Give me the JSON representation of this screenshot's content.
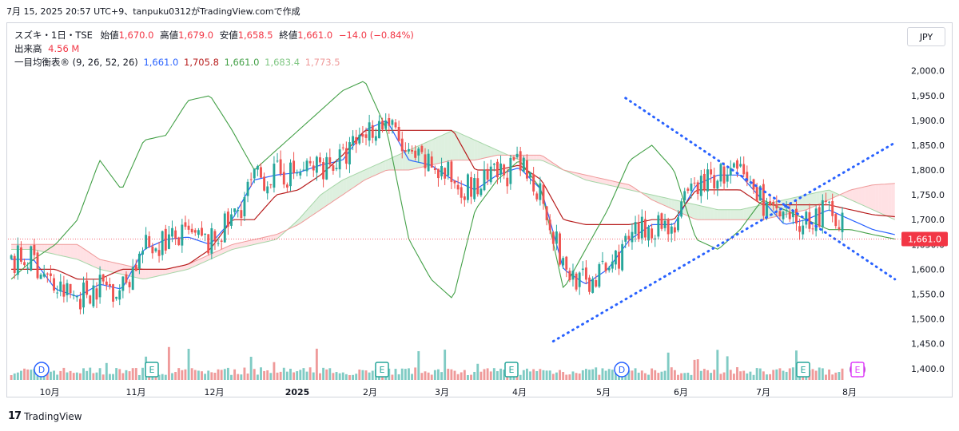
{
  "header": {
    "caption": "7月 15, 2025 20:57 UTC+9、tanpuku0312がTradingView.comで作成"
  },
  "legend": {
    "symbol": "スズキ・1日・TSE",
    "open_label": "始値",
    "open": "1,670.0",
    "high_label": "高値",
    "high": "1,679.0",
    "low_label": "安値",
    "low": "1,658.5",
    "close_label": "終値",
    "close": "1,661.0",
    "change": "−14.0 (−0.84%)",
    "volume_label": "出来高",
    "volume": "4.56 M",
    "ichimoku_label": "一目均衡表",
    "ichimoku_params": "(9, 26, 52, 26)",
    "tenkan": "1,661.0",
    "kijun": "1,705.8",
    "chikou": "1,661.0",
    "senkou_a": "1,683.4",
    "senkou_b": "1,773.5"
  },
  "currency": "JPY",
  "footer": {
    "brand": "TradingView",
    "logo_mark": "17"
  },
  "colors": {
    "up": "#26a69a",
    "down": "#ef5350",
    "tenkan": "#2962ff",
    "kijun": "#b71c1c",
    "chikou": "#43a047",
    "cloud_bull": "#c8e6c9",
    "cloud_bear": "#ffcdd2",
    "trendline": "#2962ff",
    "price_badge": "#f23645"
  },
  "chart_data": {
    "type": "candlestick",
    "title": "スズキ・1日・TSE",
    "y_axis": {
      "ticks": [
        "1,400.0",
        "1,450.0",
        "1,500.0",
        "1,550.0",
        "1,600.0",
        "1,650.0",
        "1,700.0",
        "1,750.0",
        "1,800.0",
        "1,850.0",
        "1,900.0",
        "1,950.0",
        "2,000.0"
      ],
      "range": [
        1390,
        2030
      ]
    },
    "x_axis": {
      "labels": [
        "10月",
        "11月",
        "12月",
        "2025",
        "2月",
        "3月",
        "4月",
        "5月",
        "6月",
        "7月",
        "8月"
      ]
    },
    "last_price_label": "1,661.0",
    "last_price": 1661,
    "events": [
      "D",
      "E",
      "E",
      "E",
      "D",
      "E",
      "⚡",
      "E"
    ],
    "ichimoku_anchors": {
      "tenkan": [
        1620,
        1620,
        1560,
        1545,
        1570,
        1560,
        1640,
        1660,
        1665,
        1650,
        1700,
        1780,
        1790,
        1795,
        1810,
        1820,
        1880,
        1900,
        1820,
        1810,
        1780,
        1760,
        1790,
        1805,
        1760,
        1600,
        1570,
        1600,
        1660,
        1690,
        1690,
        1770,
        1790,
        1790,
        1740,
        1690,
        1700,
        1720,
        1700,
        1680,
        1670
      ],
      "kijun": [
        1600,
        1600,
        1600,
        1580,
        1580,
        1600,
        1600,
        1600,
        1610,
        1640,
        1700,
        1700,
        1750,
        1760,
        1790,
        1830,
        1880,
        1880,
        1880,
        1880,
        1880,
        1800,
        1800,
        1810,
        1780,
        1700,
        1690,
        1690,
        1690,
        1700,
        1700,
        1760,
        1760,
        1760,
        1730,
        1730,
        1730,
        1730,
        1720,
        1710,
        1706
      ],
      "chikou": [
        1580,
        1620,
        1650,
        1700,
        1820,
        1760,
        1860,
        1870,
        1940,
        1950,
        1880,
        1800,
        1840,
        1880,
        1920,
        1960,
        1980,
        1880,
        1660,
        1580,
        1540,
        1720,
        1780,
        1820,
        1760,
        1560,
        1640,
        1720,
        1820,
        1850,
        1800,
        1660,
        1640,
        1680,
        1740,
        1720,
        1700,
        1680,
        1680,
        1670,
        1661
      ],
      "senkou_a": [
        1640,
        1640,
        1630,
        1620,
        1600,
        1590,
        1580,
        1590,
        1600,
        1620,
        1640,
        1650,
        1660,
        1700,
        1750,
        1780,
        1800,
        1820,
        1840,
        1860,
        1880,
        1860,
        1840,
        1820,
        1820,
        1800,
        1780,
        1770,
        1760,
        1750,
        1740,
        1730,
        1720,
        1720,
        1730,
        1740,
        1750,
        1760,
        1740,
        1720,
        1700
      ],
      "senkou_b": [
        1650,
        1650,
        1650,
        1650,
        1620,
        1610,
        1600,
        1600,
        1610,
        1630,
        1650,
        1660,
        1670,
        1690,
        1720,
        1750,
        1780,
        1800,
        1800,
        1810,
        1820,
        1820,
        1830,
        1830,
        1830,
        1800,
        1790,
        1780,
        1770,
        1740,
        1720,
        1700,
        1700,
        1700,
        1700,
        1710,
        1720,
        1740,
        1760,
        1770,
        1773
      ]
    },
    "trendlines": [
      {
        "from_date_index": 187,
        "from": 1945,
        "to_date_index": 269,
        "to": 1580
      },
      {
        "from_date_index": 165,
        "from": 1455,
        "to_date_index": 269,
        "to": 1855
      }
    ]
  }
}
